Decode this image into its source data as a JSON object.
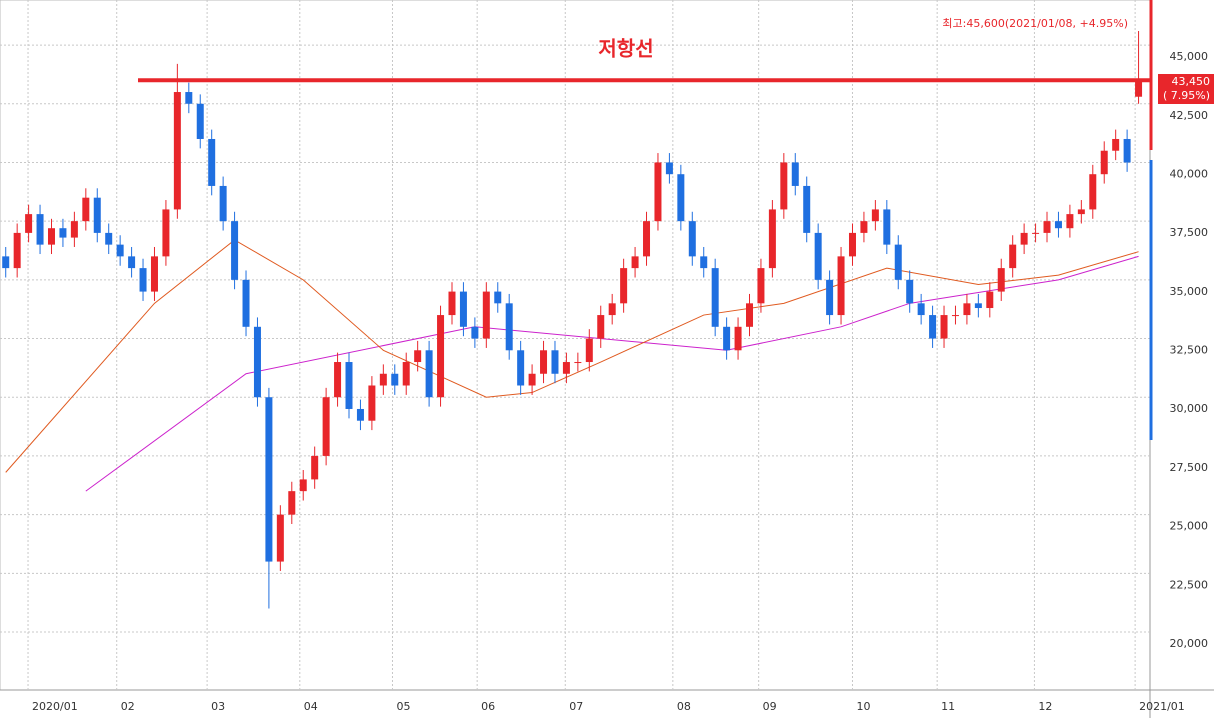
{
  "chart_data": {
    "type": "candlestick",
    "title": "저항선",
    "annotation": "최고:45,600(2021/01/08, +4.95%)",
    "last_price_label": "43,450",
    "last_change_label": "( 7.95%)",
    "resistance_level": 43500,
    "up_color": "#e8262b",
    "down_color": "#1f6fe0",
    "x": [
      0,
      1,
      2,
      3,
      4,
      5,
      6,
      7,
      8,
      9,
      10,
      11,
      12,
      13,
      14,
      15,
      16,
      17,
      18,
      19,
      20,
      21,
      22,
      23,
      24,
      25,
      26,
      27,
      28,
      29,
      30,
      31,
      32,
      33,
      34,
      35,
      36,
      37,
      38,
      39,
      40,
      41,
      42,
      43,
      44,
      45,
      46,
      47,
      48,
      49,
      50,
      51,
      52,
      53,
      54,
      55,
      56,
      57,
      58,
      59,
      60,
      61,
      62,
      63,
      64,
      65,
      66,
      67,
      68,
      69,
      70,
      71,
      72,
      73,
      74,
      75,
      76,
      77,
      78,
      79,
      80,
      81,
      82,
      83,
      84,
      85,
      86,
      87,
      88,
      89,
      90,
      91,
      92,
      93,
      94,
      95,
      96,
      97,
      98,
      99
    ],
    "candles": [
      [
        36000,
        36400,
        35100,
        35500
      ],
      [
        35500,
        37400,
        35100,
        37000
      ],
      [
        37000,
        38200,
        36600,
        37800
      ],
      [
        37800,
        38200,
        36100,
        36500
      ],
      [
        36500,
        37600,
        36100,
        37200
      ],
      [
        37200,
        37600,
        36400,
        36800
      ],
      [
        36800,
        37900,
        36400,
        37500
      ],
      [
        37500,
        38900,
        37100,
        38500
      ],
      [
        38500,
        38900,
        36600,
        37000
      ],
      [
        37000,
        37400,
        36100,
        36500
      ],
      [
        36500,
        36900,
        35600,
        36000
      ],
      [
        36000,
        36400,
        35100,
        35500
      ],
      [
        35500,
        35900,
        34100,
        34500
      ],
      [
        34500,
        36400,
        34100,
        36000
      ],
      [
        36000,
        38400,
        35600,
        38000
      ],
      [
        38000,
        44200,
        37600,
        43000
      ],
      [
        43000,
        43400,
        42100,
        42500
      ],
      [
        42500,
        42900,
        40600,
        41000
      ],
      [
        41000,
        41400,
        38600,
        39000
      ],
      [
        39000,
        39400,
        37100,
        37500
      ],
      [
        37500,
        37900,
        34600,
        35000
      ],
      [
        35000,
        35400,
        32600,
        33000
      ],
      [
        33000,
        33400,
        29600,
        30000
      ],
      [
        30000,
        30400,
        21000,
        23000
      ],
      [
        23000,
        25400,
        22600,
        25000
      ],
      [
        25000,
        26400,
        24600,
        26000
      ],
      [
        26000,
        26900,
        25600,
        26500
      ],
      [
        26500,
        27900,
        26100,
        27500
      ],
      [
        27500,
        30400,
        27100,
        30000
      ],
      [
        30000,
        31900,
        29600,
        31500
      ],
      [
        31500,
        31900,
        29100,
        29500
      ],
      [
        29500,
        29900,
        28600,
        29000
      ],
      [
        29000,
        30900,
        28600,
        30500
      ],
      [
        30500,
        31400,
        30100,
        31000
      ],
      [
        31000,
        31400,
        30100,
        30500
      ],
      [
        30500,
        31900,
        30100,
        31500
      ],
      [
        31500,
        32400,
        31100,
        32000
      ],
      [
        32000,
        32400,
        29600,
        30000
      ],
      [
        30000,
        33900,
        29600,
        33500
      ],
      [
        33500,
        34900,
        33100,
        34500
      ],
      [
        34500,
        34900,
        32600,
        33000
      ],
      [
        33000,
        33400,
        32100,
        32500
      ],
      [
        32500,
        34900,
        32100,
        34500
      ],
      [
        34500,
        34900,
        33600,
        34000
      ],
      [
        34000,
        34400,
        31600,
        32000
      ],
      [
        32000,
        32400,
        30100,
        30500
      ],
      [
        30500,
        31400,
        30100,
        31000
      ],
      [
        31000,
        32400,
        30600,
        32000
      ],
      [
        32000,
        32400,
        30600,
        31000
      ],
      [
        31000,
        31900,
        30600,
        31500
      ],
      [
        31500,
        31900,
        31100,
        31500
      ],
      [
        31500,
        32900,
        31100,
        32500
      ],
      [
        32500,
        33900,
        32100,
        33500
      ],
      [
        33500,
        34400,
        33100,
        34000
      ],
      [
        34000,
        35900,
        33600,
        35500
      ],
      [
        35500,
        36400,
        35100,
        36000
      ],
      [
        36000,
        37900,
        35600,
        37500
      ],
      [
        37500,
        40400,
        37100,
        40000
      ],
      [
        40000,
        40400,
        39100,
        39500
      ],
      [
        39500,
        39900,
        37100,
        37500
      ],
      [
        37500,
        37900,
        35600,
        36000
      ],
      [
        36000,
        36400,
        35100,
        35500
      ],
      [
        35500,
        35900,
        32600,
        33000
      ],
      [
        33000,
        33400,
        31600,
        32000
      ],
      [
        32000,
        33400,
        31600,
        33000
      ],
      [
        33000,
        34400,
        32600,
        34000
      ],
      [
        34000,
        35900,
        33600,
        35500
      ],
      [
        35500,
        38400,
        35100,
        38000
      ],
      [
        38000,
        40400,
        37600,
        40000
      ],
      [
        40000,
        40400,
        38600,
        39000
      ],
      [
        39000,
        39400,
        36600,
        37000
      ],
      [
        37000,
        37400,
        34600,
        35000
      ],
      [
        35000,
        35400,
        33100,
        33500
      ],
      [
        33500,
        36400,
        33100,
        36000
      ],
      [
        36000,
        37400,
        35600,
        37000
      ],
      [
        37000,
        37900,
        36600,
        37500
      ],
      [
        37500,
        38400,
        37100,
        38000
      ],
      [
        38000,
        38400,
        36100,
        36500
      ],
      [
        36500,
        36900,
        34600,
        35000
      ],
      [
        35000,
        35400,
        33600,
        34000
      ],
      [
        34000,
        34400,
        33100,
        33500
      ],
      [
        33500,
        33900,
        32100,
        32500
      ],
      [
        32500,
        33900,
        32100,
        33500
      ],
      [
        33500,
        33900,
        33100,
        33500
      ],
      [
        33500,
        34400,
        33100,
        34000
      ],
      [
        34000,
        34400,
        33400,
        33800
      ],
      [
        33800,
        34900,
        33400,
        34500
      ],
      [
        34500,
        35900,
        34100,
        35500
      ],
      [
        35500,
        36900,
        35100,
        36500
      ],
      [
        36500,
        37400,
        36100,
        37000
      ],
      [
        37000,
        37400,
        36600,
        37000
      ],
      [
        37000,
        37900,
        36600,
        37500
      ],
      [
        37500,
        37900,
        36800,
        37200
      ],
      [
        37200,
        38200,
        36800,
        37800
      ],
      [
        37800,
        38400,
        37400,
        38000
      ],
      [
        38000,
        39900,
        37600,
        39500
      ],
      [
        39500,
        40900,
        39100,
        40500
      ],
      [
        40500,
        41400,
        40100,
        41000
      ],
      [
        41000,
        41400,
        39600,
        40000
      ],
      [
        42800,
        45600,
        42500,
        43450
      ]
    ],
    "series": [
      {
        "color": "#cc22cc",
        "x": [
          7,
          21,
          41,
          63,
          73,
          79,
          92,
          99
        ],
        "values": [
          26000,
          31000,
          33000,
          32000,
          33000,
          34000,
          35000,
          36000
        ]
      },
      {
        "color": "#e05a20",
        "x": [
          0,
          13,
          20,
          26,
          33,
          42,
          46,
          52,
          61,
          68,
          77,
          85,
          92,
          99
        ],
        "values": [
          26800,
          34000,
          36700,
          35000,
          32000,
          30000,
          30200,
          31500,
          33500,
          34000,
          35500,
          34800,
          35200,
          36200
        ]
      }
    ],
    "xlim": [
      -0.5,
      100
    ],
    "xticks": [
      {
        "value": 1.95,
        "label": "2020/01"
      },
      {
        "value": 9.7,
        "label": "02"
      },
      {
        "value": 17.6,
        "label": "03"
      },
      {
        "value": 25.7,
        "label": "04"
      },
      {
        "value": 33.8,
        "label": "05"
      },
      {
        "value": 41.2,
        "label": "06"
      },
      {
        "value": 48.9,
        "label": "07"
      },
      {
        "value": 58.3,
        "label": "08"
      },
      {
        "value": 65.8,
        "label": "09"
      },
      {
        "value": 74,
        "label": "10"
      },
      {
        "value": 81.4,
        "label": "11"
      },
      {
        "value": 89.9,
        "label": "12"
      },
      {
        "value": 98.7,
        "label": "2021/01"
      }
    ],
    "ylim": [
      17530,
      46920
    ],
    "yticks": [
      {
        "value": 20000,
        "label": "20,000"
      },
      {
        "value": 22500,
        "label": "22,500"
      },
      {
        "value": 25000,
        "label": "25,000"
      },
      {
        "value": 27500,
        "label": "27,500"
      },
      {
        "value": 30000,
        "label": "30,000"
      },
      {
        "value": 32500,
        "label": "32,500"
      },
      {
        "value": 35000,
        "label": "35,000"
      },
      {
        "value": 37500,
        "label": "37,500"
      },
      {
        "value": 40000,
        "label": "40,000"
      },
      {
        "value": 42500,
        "label": "42,500"
      },
      {
        "value": 45000,
        "label": "45,000"
      }
    ],
    "grid": true
  }
}
